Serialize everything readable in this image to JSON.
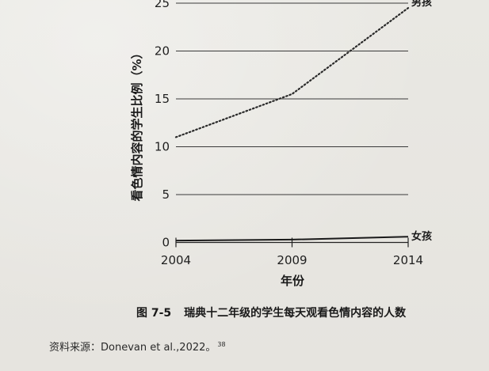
{
  "chart_data": {
    "type": "line",
    "xlabel": "年份",
    "ylabel": "看色情内容的学生比例（%）",
    "x": [
      2004,
      2009,
      2014
    ],
    "x_ticks": [
      "2004",
      "2009",
      "2014"
    ],
    "y_ticks": [
      "0",
      "5",
      "10",
      "15",
      "20",
      "25"
    ],
    "ylim": [
      0,
      25
    ],
    "grid": true,
    "series": [
      {
        "name": "男孩",
        "values": [
          11,
          15.5,
          24.5
        ],
        "style": "dotted",
        "color": "#2a2a2a"
      },
      {
        "name": "女孩",
        "values": [
          0.2,
          0.3,
          0.6
        ],
        "style": "solid",
        "color": "#1a1a1a"
      }
    ]
  },
  "caption": {
    "figure_number": "图 7-5",
    "text": "瑞典十二年级的学生每天观看色情内容的人数"
  },
  "source": {
    "text": "资料来源：Donevan et al.,2022。",
    "ref": "38"
  }
}
